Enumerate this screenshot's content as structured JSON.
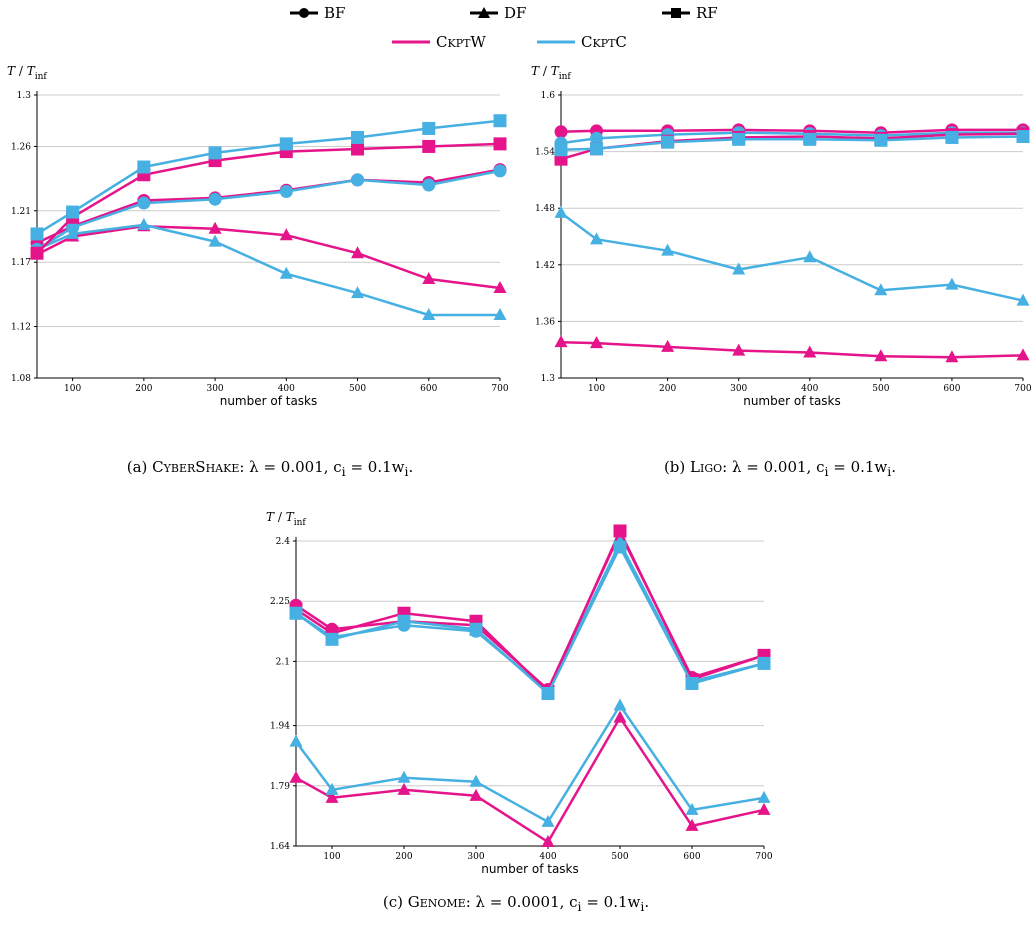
{
  "legend": {
    "markers": [
      {
        "label": "BF",
        "marker": "circle"
      },
      {
        "label": "DF",
        "marker": "triangle"
      },
      {
        "label": "RF",
        "marker": "square"
      }
    ],
    "lines": [
      {
        "label": "CkptW",
        "color": "#e5148a"
      },
      {
        "label": "CkptC",
        "color": "#45b0e1"
      }
    ]
  },
  "colors": {
    "CkptW": "#e5148a",
    "CkptC": "#45b0e1",
    "grid": "#cccccc"
  },
  "chart_data": [
    {
      "type": "line",
      "caption": {
        "name": "CyberShake",
        "rest": ": λ = 0.001, c",
        "sub": "i",
        "rest2": " = 0.1w",
        "sub2": "i",
        "end": "."
      },
      "caption_prefix": "(a)",
      "ylabel_main": "T",
      "ylabel_sep": " / ",
      "ylabel_T": "T",
      "ylabel_sub": "inf",
      "xlabel": "number of tasks",
      "x": [
        50,
        100,
        200,
        300,
        400,
        500,
        600,
        700
      ],
      "xticks": [
        100,
        200,
        300,
        400,
        500,
        600,
        700
      ],
      "xlim": [
        50,
        700
      ],
      "ylim": [
        1.08,
        1.3
      ],
      "yticks": [
        1.08,
        1.12,
        1.17,
        1.21,
        1.26,
        1.3
      ],
      "grid": true,
      "series": [
        {
          "name": "CkptW",
          "marker": "circle",
          "values": [
            1.185,
            1.198,
            1.218,
            1.22,
            1.226,
            1.234,
            1.232,
            1.242
          ]
        },
        {
          "name": "CkptC",
          "marker": "circle",
          "values": [
            1.18,
            1.197,
            1.216,
            1.219,
            1.225,
            1.234,
            1.23,
            1.241
          ]
        },
        {
          "name": "CkptW",
          "marker": "triangle",
          "values": [
            1.176,
            1.19,
            1.198,
            1.196,
            1.191,
            1.177,
            1.157,
            1.15
          ]
        },
        {
          "name": "CkptC",
          "marker": "triangle",
          "values": [
            1.18,
            1.192,
            1.199,
            1.186,
            1.161,
            1.146,
            1.129,
            1.129
          ]
        },
        {
          "name": "CkptW",
          "marker": "square",
          "values": [
            1.177,
            1.205,
            1.238,
            1.249,
            1.256,
            1.258,
            1.26,
            1.262
          ]
        },
        {
          "name": "CkptC",
          "marker": "square",
          "values": [
            1.192,
            1.209,
            1.244,
            1.255,
            1.262,
            1.267,
            1.274,
            1.28
          ]
        }
      ]
    },
    {
      "type": "line",
      "caption": {
        "name": "Ligo",
        "rest": ": λ = 0.001, c",
        "sub": "i",
        "rest2": " = 0.1w",
        "sub2": "i",
        "end": "."
      },
      "caption_prefix": "(b)",
      "ylabel_main": "T",
      "ylabel_sep": " / ",
      "ylabel_T": "T",
      "ylabel_sub": "inf",
      "xlabel": "number of tasks",
      "x": [
        50,
        100,
        200,
        300,
        400,
        500,
        600,
        700
      ],
      "xticks": [
        100,
        200,
        300,
        400,
        500,
        600,
        700
      ],
      "xlim": [
        50,
        700
      ],
      "ylim": [
        1.3,
        1.6
      ],
      "yticks": [
        1.3,
        1.36,
        1.42,
        1.48,
        1.54,
        1.6
      ],
      "grid": true,
      "series": [
        {
          "name": "CkptW",
          "marker": "circle",
          "values": [
            1.561,
            1.562,
            1.562,
            1.563,
            1.562,
            1.56,
            1.563,
            1.563
          ]
        },
        {
          "name": "CkptC",
          "marker": "circle",
          "values": [
            1.549,
            1.554,
            1.558,
            1.56,
            1.559,
            1.557,
            1.56,
            1.56
          ]
        },
        {
          "name": "CkptW",
          "marker": "triangle",
          "values": [
            1.338,
            1.337,
            1.333,
            1.329,
            1.327,
            1.323,
            1.322,
            1.324
          ]
        },
        {
          "name": "CkptC",
          "marker": "triangle",
          "values": [
            1.475,
            1.447,
            1.435,
            1.415,
            1.428,
            1.393,
            1.399,
            1.382
          ]
        },
        {
          "name": "CkptW",
          "marker": "square",
          "values": [
            1.532,
            1.543,
            1.551,
            1.555,
            1.556,
            1.554,
            1.558,
            1.559
          ]
        },
        {
          "name": "CkptC",
          "marker": "square",
          "values": [
            1.542,
            1.543,
            1.55,
            1.553,
            1.553,
            1.552,
            1.555,
            1.556
          ]
        }
      ]
    },
    {
      "type": "line",
      "caption": {
        "name": "Genome",
        "rest": ": λ = 0.0001, c",
        "sub": "i",
        "rest2": " = 0.1w",
        "sub2": "i",
        "end": "."
      },
      "caption_prefix": "(c)",
      "ylabel_main": "T",
      "ylabel_sep": " / ",
      "ylabel_T": "T",
      "ylabel_sub": "inf",
      "xlabel": "number of tasks",
      "x": [
        50,
        100,
        200,
        300,
        400,
        500,
        600,
        700
      ],
      "xticks": [
        100,
        200,
        300,
        400,
        500,
        600,
        700
      ],
      "xlim": [
        50,
        700
      ],
      "ylim": [
        1.64,
        2.4
      ],
      "yticks": [
        1.64,
        1.79,
        1.94,
        2.1,
        2.25,
        2.4
      ],
      "grid": true,
      "series": [
        {
          "name": "CkptW",
          "marker": "circle",
          "values": [
            2.24,
            2.18,
            2.2,
            2.19,
            2.03,
            2.42,
            2.06,
            2.115
          ]
        },
        {
          "name": "CkptC",
          "marker": "circle",
          "values": [
            2.22,
            2.16,
            2.19,
            2.175,
            2.025,
            2.395,
            2.05,
            2.095
          ]
        },
        {
          "name": "CkptW",
          "marker": "triangle",
          "values": [
            1.81,
            1.76,
            1.78,
            1.765,
            1.65,
            1.96,
            1.69,
            1.73
          ]
        },
        {
          "name": "CkptC",
          "marker": "triangle",
          "values": [
            1.9,
            1.78,
            1.81,
            1.8,
            1.7,
            1.99,
            1.73,
            1.76
          ]
        },
        {
          "name": "CkptW",
          "marker": "square",
          "values": [
            2.23,
            2.17,
            2.22,
            2.2,
            2.025,
            2.425,
            2.055,
            2.115
          ]
        },
        {
          "name": "CkptC",
          "marker": "square",
          "values": [
            2.22,
            2.155,
            2.2,
            2.18,
            2.02,
            2.385,
            2.045,
            2.095
          ]
        }
      ]
    }
  ]
}
